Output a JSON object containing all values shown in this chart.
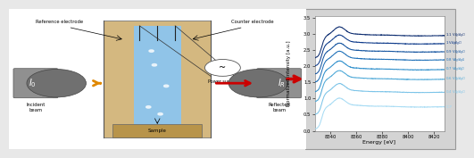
{
  "xlabel": "Energy [eV]",
  "ylabel": "Normalized Intensity [a.u.]",
  "xlim": [
    8328,
    8428
  ],
  "ylim": [
    0.0,
    3.55
  ],
  "xticks": [
    8340,
    8360,
    8380,
    8400,
    8420
  ],
  "yticks": [
    0.0,
    0.5,
    1.0,
    1.5,
    2.0,
    2.5,
    3.0,
    3.5
  ],
  "labels": [
    "1.1 V$_{Ag/AgCl}$",
    "1 V$_{Ag/AgCl}$",
    "0.9 V$_{Ag/AgCl}$",
    "0.8 V$_{Ag/AgCl}$",
    "0.7 V$_{Ag/AgCl}$",
    "0.6 V$_{Ag/AgCl}$",
    "0.4 V$_{Ag/AgCl}$",
    "OCP"
  ],
  "colors": [
    "#0a2a6e",
    "#0d3a8a",
    "#1555a0",
    "#1e70b8",
    "#3090cc",
    "#50aad8",
    "#7cc4e8",
    "#a8dcf4"
  ],
  "offsets": [
    2.25,
    2.0,
    1.75,
    1.5,
    1.2,
    0.9,
    0.5,
    0.05
  ],
  "figure_bg": "#e8e8e8",
  "plot_bg": "#ffffff",
  "panel_bg": "#d4d4d4"
}
